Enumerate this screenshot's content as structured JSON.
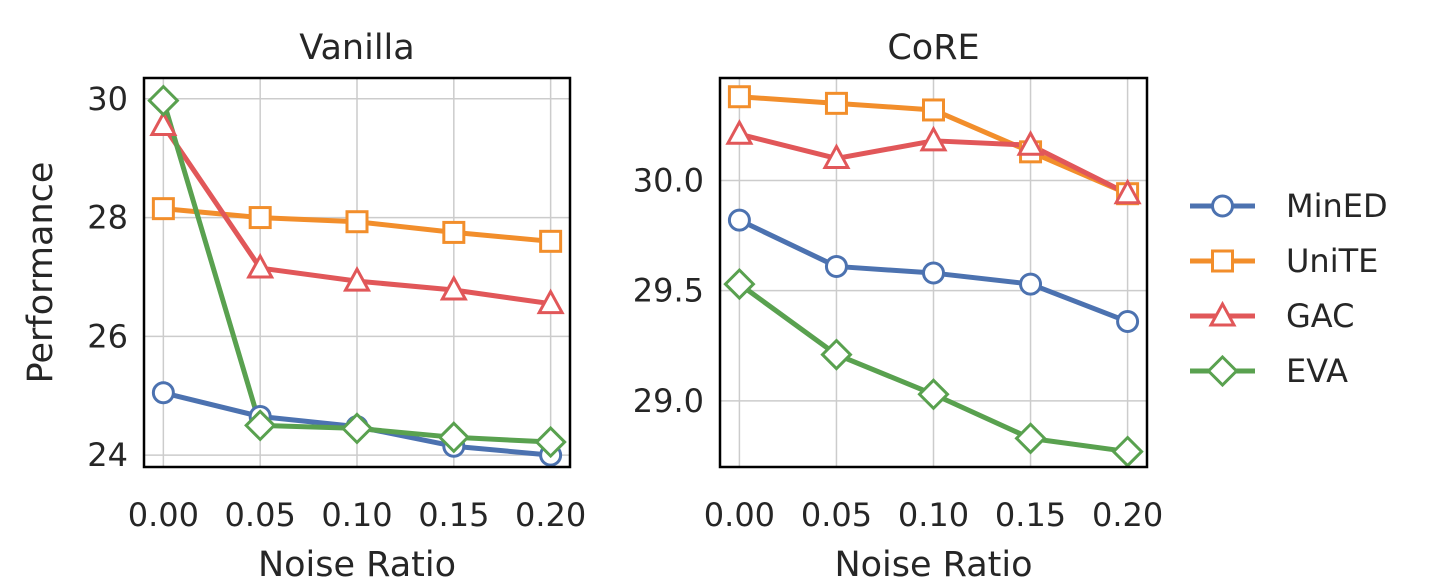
{
  "chart_data": [
    {
      "type": "line",
      "title": "Vanilla",
      "xlabel": "Noise Ratio",
      "ylabel": "Performance",
      "x": [
        0.0,
        0.05,
        0.1,
        0.15,
        0.2
      ],
      "x_tick_labels": [
        "0.00",
        "0.05",
        "0.10",
        "0.15",
        "0.20"
      ],
      "xlim": [
        -0.01,
        0.21
      ],
      "ylim": [
        23.8,
        30.35
      ],
      "y_ticks": [
        24,
        26,
        28,
        30
      ],
      "y_tick_labels": [
        "24",
        "26",
        "28",
        "30"
      ],
      "grid": true,
      "series": [
        {
          "name": "MinED",
          "values": [
            25.05,
            24.65,
            24.48,
            24.15,
            24.0
          ]
        },
        {
          "name": "UniTE",
          "values": [
            28.15,
            28.0,
            27.93,
            27.75,
            27.6
          ]
        },
        {
          "name": "GAC",
          "values": [
            29.55,
            27.15,
            26.93,
            26.78,
            26.55
          ]
        },
        {
          "name": "EVA",
          "values": [
            29.97,
            24.5,
            24.45,
            24.3,
            24.22
          ]
        }
      ]
    },
    {
      "type": "line",
      "title": "CoRE",
      "xlabel": "Noise Ratio",
      "ylabel": "",
      "x": [
        0.0,
        0.05,
        0.1,
        0.15,
        0.2
      ],
      "x_tick_labels": [
        "0.00",
        "0.05",
        "0.10",
        "0.15",
        "0.20"
      ],
      "xlim": [
        -0.01,
        0.21
      ],
      "ylim": [
        28.7,
        30.465
      ],
      "y_ticks": [
        29.0,
        29.5,
        30.0
      ],
      "y_tick_labels": [
        "29.0",
        "29.5",
        "30.0"
      ],
      "grid": true,
      "series": [
        {
          "name": "MinED",
          "values": [
            29.82,
            29.61,
            29.58,
            29.53,
            29.36
          ]
        },
        {
          "name": "UniTE",
          "values": [
            30.38,
            30.35,
            30.32,
            30.13,
            29.94
          ]
        },
        {
          "name": "GAC",
          "values": [
            30.21,
            30.1,
            30.18,
            30.16,
            29.94
          ]
        },
        {
          "name": "EVA",
          "values": [
            29.53,
            29.21,
            29.03,
            28.83,
            28.77
          ]
        }
      ]
    }
  ],
  "legend": {
    "placement": "right",
    "entries": [
      {
        "name": "MinED",
        "color": "#4c72b0",
        "marker": "circle"
      },
      {
        "name": "UniTE",
        "color": "#f28e2b",
        "marker": "square"
      },
      {
        "name": "GAC",
        "color": "#e15759",
        "marker": "triangle"
      },
      {
        "name": "EVA",
        "color": "#59a14f",
        "marker": "diamond"
      }
    ]
  }
}
